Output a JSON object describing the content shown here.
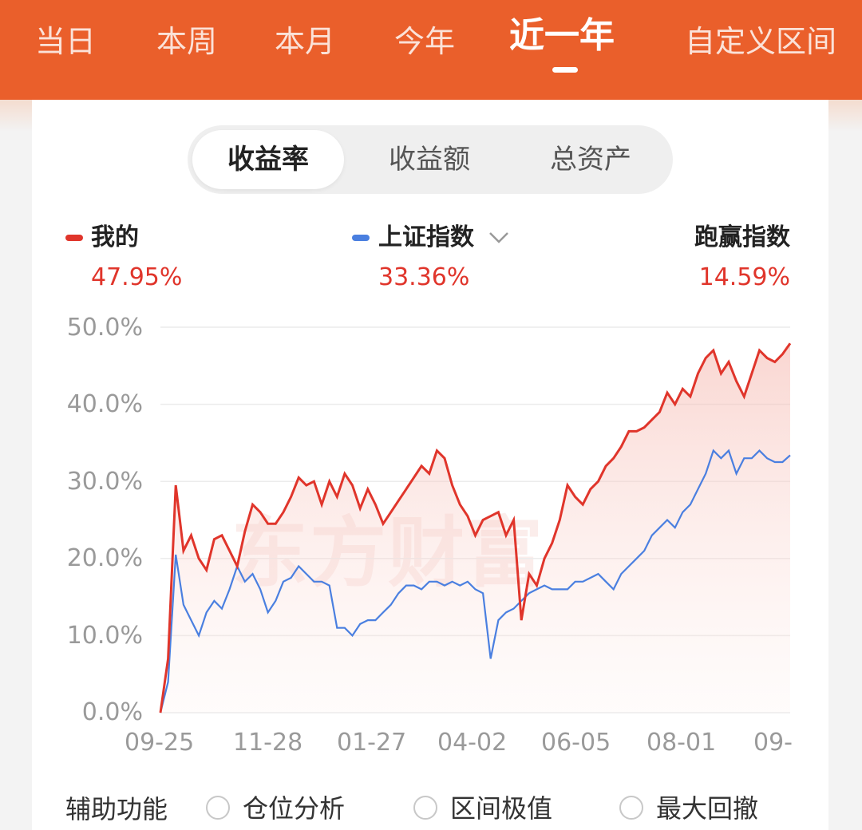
{
  "period_tabs": [
    {
      "label": "当日"
    },
    {
      "label": "本周"
    },
    {
      "label": "本月"
    },
    {
      "label": "今年"
    },
    {
      "label": "近一年",
      "active": true
    },
    {
      "label": "自定义区间"
    }
  ],
  "segments": [
    {
      "label": "收益率",
      "active": true
    },
    {
      "label": "收益额"
    },
    {
      "label": "总资产"
    }
  ],
  "legend": {
    "mine": {
      "label": "我的",
      "value": "47.95%",
      "color": "#e0352b"
    },
    "index": {
      "label": "上证指数",
      "value": "33.36%",
      "color": "#4a7fe0",
      "icon": "chevron-down-icon"
    },
    "beat": {
      "label": "跑赢指数",
      "value": "14.59%"
    }
  },
  "watermark": "东方财富",
  "chart_data": {
    "type": "line",
    "y_tick_labels": [
      "50.0%",
      "40.0%",
      "30.0%",
      "20.0%",
      "10.0%",
      "0.0%"
    ],
    "x_tick_labels": [
      "09-25",
      "11-28",
      "01-27",
      "04-02",
      "06-05",
      "08-01",
      "09-"
    ],
    "ylim": [
      0,
      50
    ],
    "y_unit": "%",
    "grid": true,
    "series": [
      {
        "name": "我的",
        "color": "#e0352b",
        "values": [
          0,
          7,
          29.5,
          21,
          23,
          20,
          18.5,
          22.5,
          23,
          21,
          19,
          23.5,
          27,
          26,
          24.5,
          24.5,
          26,
          28,
          30.5,
          29.5,
          30,
          27,
          30,
          28,
          31,
          29.5,
          26.5,
          29,
          27,
          24.5,
          26,
          27.5,
          29,
          30.5,
          32,
          31,
          34,
          33,
          29.5,
          27,
          25.5,
          23,
          25,
          25.5,
          26,
          23,
          25,
          12,
          18,
          16.5,
          20,
          22,
          25,
          29.5,
          28,
          27,
          29,
          30,
          32,
          33,
          34.5,
          36.5,
          36.5,
          37,
          38,
          39,
          41.5,
          40,
          42,
          41,
          44,
          46,
          47,
          44,
          45.5,
          43,
          41,
          44,
          47,
          46,
          45.5,
          46.5,
          47.9
        ]
      },
      {
        "name": "上证指数",
        "color": "#4a7fe0",
        "values": [
          0,
          4,
          20.5,
          14,
          12,
          10,
          13,
          14.5,
          13.5,
          16,
          19,
          17,
          18,
          16,
          13,
          14.5,
          17,
          17.5,
          19,
          18,
          17,
          17,
          16.5,
          11,
          11,
          10,
          11.5,
          12,
          12,
          13,
          14,
          15.5,
          16.5,
          16.5,
          16,
          17,
          17,
          16.5,
          17,
          16.5,
          17,
          16,
          15.5,
          7,
          12,
          13,
          13.5,
          14.5,
          15.5,
          16,
          16.5,
          16,
          16,
          16,
          17,
          17,
          17.5,
          18,
          17,
          16,
          18,
          19,
          20,
          21,
          23,
          24,
          25,
          24,
          26,
          27,
          29,
          31,
          34,
          33,
          34,
          31,
          33,
          33,
          34,
          33,
          32.5,
          32.5,
          33.4
        ]
      }
    ]
  },
  "aux": {
    "label": "辅助功能",
    "options": [
      {
        "label": "仓位分析"
      },
      {
        "label": "区间极值"
      },
      {
        "label": "最大回撤"
      }
    ]
  }
}
